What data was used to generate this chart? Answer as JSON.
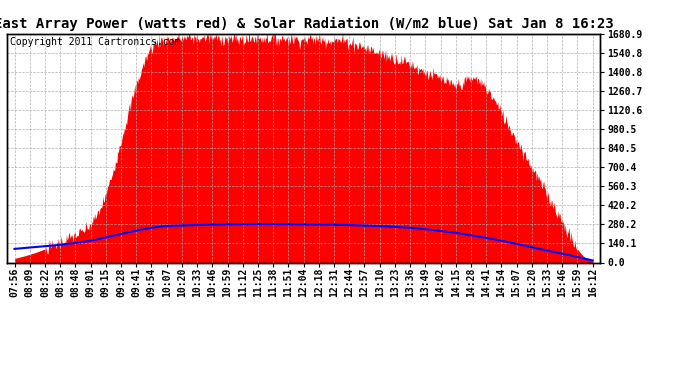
{
  "title": "East Array Power (watts red) & Solar Radiation (W/m2 blue) Sat Jan 8 16:23",
  "copyright": "Copyright 2011 Cartronics.com",
  "background_color": "#ffffff",
  "plot_bg_color": "#ffffff",
  "grid_color": "#aaaaaa",
  "y_ticks": [
    0.0,
    140.1,
    280.2,
    420.2,
    560.3,
    700.4,
    840.5,
    980.5,
    1120.6,
    1260.7,
    1400.8,
    1540.8,
    1680.9
  ],
  "y_min": 0.0,
  "y_max": 1680.9,
  "x_labels": [
    "07:56",
    "08:09",
    "08:22",
    "08:35",
    "08:48",
    "09:01",
    "09:15",
    "09:28",
    "09:41",
    "09:54",
    "10:07",
    "10:20",
    "10:33",
    "10:46",
    "10:59",
    "11:12",
    "11:25",
    "11:38",
    "11:51",
    "12:04",
    "12:18",
    "12:31",
    "12:44",
    "12:57",
    "13:10",
    "13:23",
    "13:36",
    "13:49",
    "14:02",
    "14:15",
    "14:28",
    "14:41",
    "14:54",
    "15:07",
    "15:20",
    "15:33",
    "15:46",
    "15:59",
    "16:12"
  ],
  "red_fill_color": "#ff0000",
  "blue_line_color": "#0000ff",
  "title_fontsize": 10,
  "tick_fontsize": 7,
  "copyright_fontsize": 7,
  "power_curve": [
    30,
    60,
    100,
    150,
    200,
    280,
    500,
    900,
    1300,
    1580,
    1640,
    1650,
    1650,
    1650,
    1645,
    1640,
    1650,
    1648,
    1645,
    1640,
    1640,
    1635,
    1620,
    1580,
    1540,
    1500,
    1460,
    1400,
    1350,
    1300,
    1350,
    1280,
    1100,
    900,
    700,
    500,
    300,
    100,
    20
  ],
  "solar_curve": [
    100,
    110,
    120,
    130,
    145,
    160,
    185,
    210,
    235,
    255,
    268,
    272,
    275,
    278,
    280,
    282,
    283,
    282,
    281,
    280,
    279,
    278,
    275,
    272,
    268,
    262,
    255,
    245,
    232,
    218,
    200,
    182,
    160,
    138,
    112,
    88,
    65,
    40,
    15
  ]
}
